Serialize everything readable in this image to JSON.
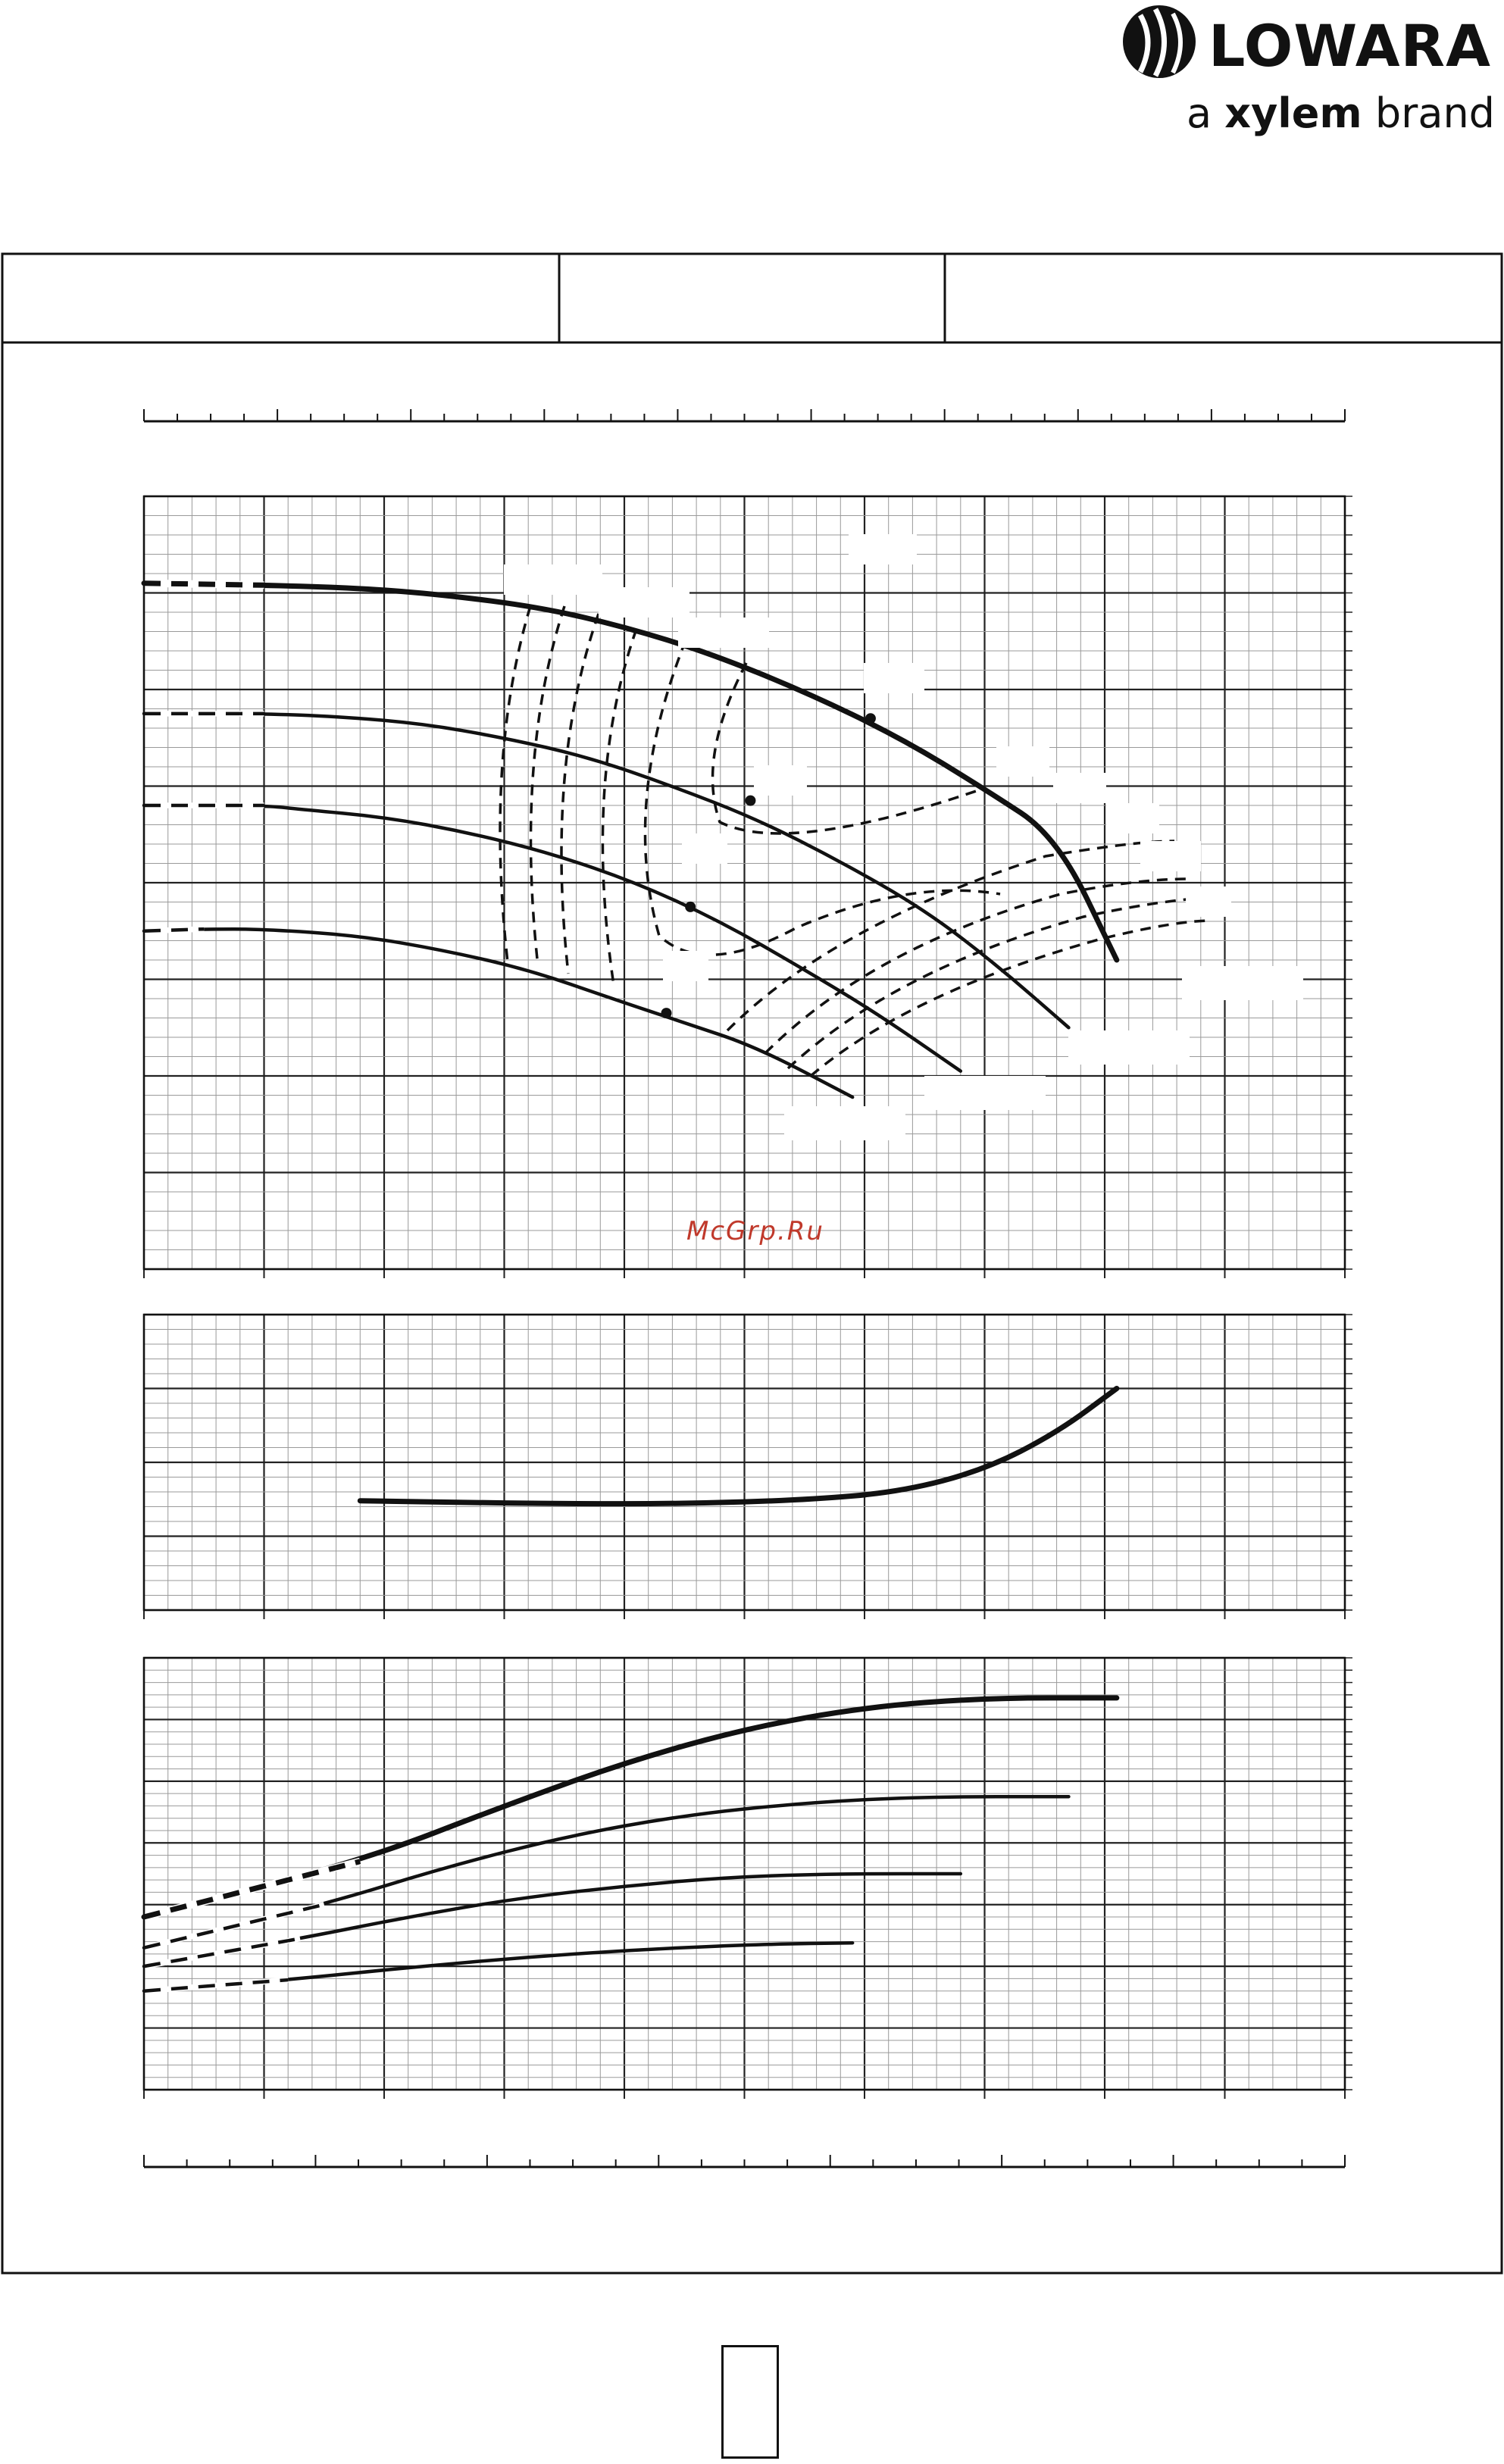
{
  "brand": {
    "logo_name": "LOWARA",
    "tagline_prefix": "a",
    "tagline_brand": "xylem",
    "tagline_suffix": "brand"
  },
  "watermark": "McGrp.Ru",
  "chart_data": [
    {
      "type": "line",
      "panel": "head",
      "title": "",
      "xlabel": "",
      "ylabel": "",
      "xlim": [
        0,
        10
      ],
      "ylim": [
        0,
        8
      ],
      "grid": true,
      "series": [
        {
          "role": "impeller-curve",
          "x": [
            0,
            1,
            1.8,
            2.5,
            3.3,
            4.0,
            4.7,
            5.5,
            6.3,
            7.0,
            7.6,
            8.1
          ],
          "y": [
            7.1,
            7.08,
            7.05,
            6.98,
            6.85,
            6.65,
            6.38,
            5.98,
            5.5,
            4.97,
            4.48,
            3.2
          ]
        },
        {
          "role": "impeller-curve",
          "x": [
            0,
            1,
            1.6,
            2.3,
            3.0,
            3.7,
            4.4,
            5.1,
            5.8,
            6.5,
            7.1,
            7.7
          ],
          "y": [
            5.75,
            5.75,
            5.72,
            5.65,
            5.5,
            5.3,
            5.0,
            4.66,
            4.22,
            3.72,
            3.15,
            2.5
          ]
        },
        {
          "role": "impeller-curve",
          "x": [
            0,
            1,
            1.3,
            2.0,
            2.7,
            3.4,
            4.1,
            4.8,
            5.5,
            6.1,
            6.8
          ],
          "y": [
            4.8,
            4.8,
            4.76,
            4.68,
            4.52,
            4.3,
            4.0,
            3.6,
            3.1,
            2.65,
            2.05
          ]
        },
        {
          "role": "impeller-curve",
          "x": [
            0,
            0.5,
            1,
            1.8,
            2.5,
            3.2,
            3.9,
            4.5,
            5.1,
            5.9
          ],
          "y": [
            3.5,
            3.52,
            3.52,
            3.45,
            3.3,
            3.1,
            2.8,
            2.55,
            2.3,
            1.78
          ]
        }
      ],
      "op_points": [
        [
          6.05,
          5.7
        ],
        [
          5.05,
          4.85
        ],
        [
          4.55,
          3.75
        ],
        [
          4.35,
          2.65
        ]
      ]
    },
    {
      "type": "line",
      "panel": "npsh",
      "title": "",
      "xlabel": "",
      "ylabel": "",
      "xlim": [
        0,
        10
      ],
      "ylim": [
        0,
        4
      ],
      "grid": true,
      "series": [
        {
          "role": "npsh-curve",
          "x": [
            1.8,
            2.5,
            3.5,
            4.5,
            5.5,
            6.3,
            7.0,
            7.6,
            8.1
          ],
          "y": [
            1.48,
            1.46,
            1.44,
            1.44,
            1.49,
            1.6,
            1.9,
            2.4,
            3.0
          ]
        }
      ]
    },
    {
      "type": "line",
      "panel": "power",
      "title": "",
      "xlabel": "",
      "ylabel": "",
      "xlim": [
        0,
        10
      ],
      "ylim": [
        0,
        7
      ],
      "grid": true,
      "series": [
        {
          "role": "power-curve",
          "x": [
            0,
            1.8,
            3.0,
            4.0,
            5.0,
            6.0,
            7.0,
            8.1
          ],
          "y": [
            2.8,
            3.7,
            4.6,
            5.3,
            5.85,
            6.2,
            6.35,
            6.35
          ]
        },
        {
          "role": "power-curve",
          "x": [
            0,
            1.5,
            2.5,
            3.5,
            4.5,
            5.5,
            6.5,
            7.7
          ],
          "y": [
            2.3,
            3.0,
            3.6,
            4.1,
            4.45,
            4.65,
            4.75,
            4.75
          ]
        },
        {
          "role": "power-curve",
          "x": [
            0,
            1.3,
            2.2,
            3.1,
            4.0,
            4.9,
            5.8,
            6.8
          ],
          "y": [
            2.0,
            2.45,
            2.8,
            3.1,
            3.3,
            3.45,
            3.5,
            3.5
          ]
        },
        {
          "role": "power-curve",
          "x": [
            0,
            1.2,
            2.2,
            3.2,
            4.2,
            5.2,
            5.9
          ],
          "y": [
            1.6,
            1.78,
            1.98,
            2.15,
            2.28,
            2.36,
            2.38
          ]
        }
      ]
    }
  ]
}
